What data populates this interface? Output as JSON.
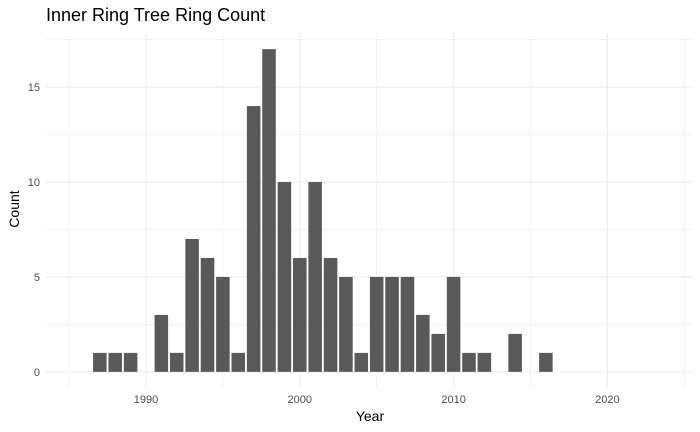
{
  "chart_data": {
    "type": "bar",
    "title": "Inner Ring Tree Ring Count",
    "xlabel": "Year",
    "ylabel": "Count",
    "x": [
      1987,
      1988,
      1989,
      1991,
      1992,
      1993,
      1994,
      1995,
      1996,
      1997,
      1998,
      1999,
      2000,
      2001,
      2002,
      2003,
      2004,
      2005,
      2006,
      2007,
      2008,
      2009,
      2010,
      2011,
      2012,
      2014,
      2016
    ],
    "values": [
      1,
      1,
      1,
      3,
      1,
      7,
      6,
      5,
      1,
      14,
      17,
      10,
      6,
      10,
      6,
      5,
      1,
      5,
      5,
      5,
      3,
      2,
      5,
      1,
      1,
      2,
      1
    ],
    "xlim": [
      1983.5,
      2025.5
    ],
    "ylim": [
      -0.85,
      17.85
    ],
    "x_ticks": [
      1990,
      2000,
      2010,
      2020
    ],
    "y_ticks": [
      0,
      5,
      10,
      15
    ],
    "grid": true,
    "bar_color": "#595959",
    "grid_color": "#ebebeb"
  }
}
